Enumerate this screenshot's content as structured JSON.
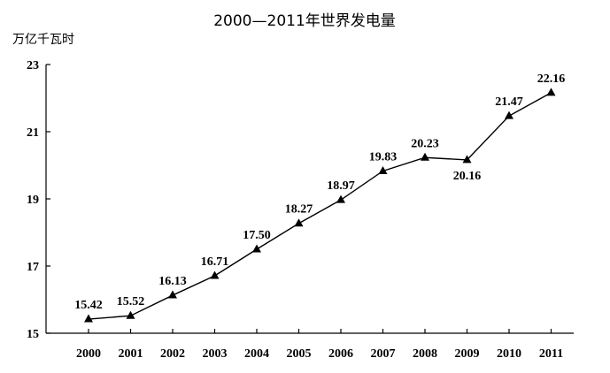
{
  "chart_data": {
    "type": "line",
    "title": "2000—2011年世界发电量",
    "ylabel": "万亿千瓦时",
    "xlabel": "",
    "categories": [
      "2000",
      "2001",
      "2002",
      "2003",
      "2004",
      "2005",
      "2006",
      "2007",
      "2008",
      "2009",
      "2010",
      "2011"
    ],
    "series": [
      {
        "values": [
          15.42,
          15.52,
          16.13,
          16.71,
          17.5,
          18.27,
          18.97,
          19.83,
          20.23,
          20.16,
          21.47,
          22.16
        ],
        "labels": [
          "15.42",
          "15.52",
          "16.13",
          "16.71",
          "17.50",
          "18.27",
          "18.97",
          "19.83",
          "20.23",
          "20.16",
          "21.47",
          "22.16"
        ]
      }
    ],
    "ylim": [
      15,
      23
    ],
    "yticks": [
      15,
      17,
      19,
      21,
      23
    ],
    "grid": false,
    "marker": "triangle",
    "line_color": "#000000"
  }
}
